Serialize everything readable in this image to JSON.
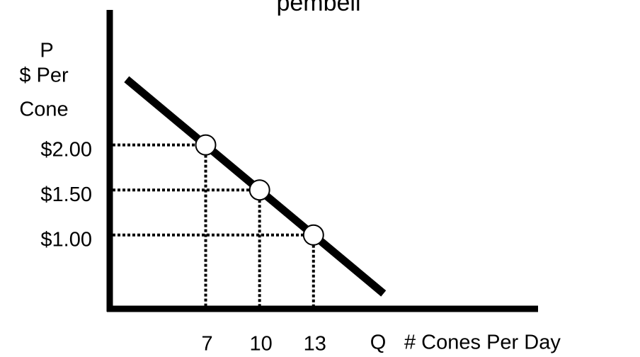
{
  "chart_data": {
    "type": "line",
    "title": "pembeli",
    "y_axis_symbol": "P",
    "y_axis_label_lines": [
      "$ Per",
      "Cone"
    ],
    "x_axis_symbol": "Q",
    "x_axis_label": "# Cones Per Day",
    "xlim": [
      1.66,
      25.5
    ],
    "ylim": [
      0.18,
      3.5
    ],
    "xticks": [
      7,
      10,
      13
    ],
    "yticks": [
      {
        "value": 2,
        "label": "$2.00"
      },
      {
        "value": 1.5,
        "label": "$1.50"
      },
      {
        "value": 1,
        "label": "$1.00"
      }
    ],
    "series": [
      {
        "color": "#000000",
        "x": [
          2.6,
          16.9
        ],
        "values": [
          2.73,
          0.35
        ]
      }
    ],
    "points": {
      "color": "#ffffff",
      "x": [
        7,
        10,
        13
      ],
      "values": [
        2,
        1.5,
        1
      ]
    }
  }
}
